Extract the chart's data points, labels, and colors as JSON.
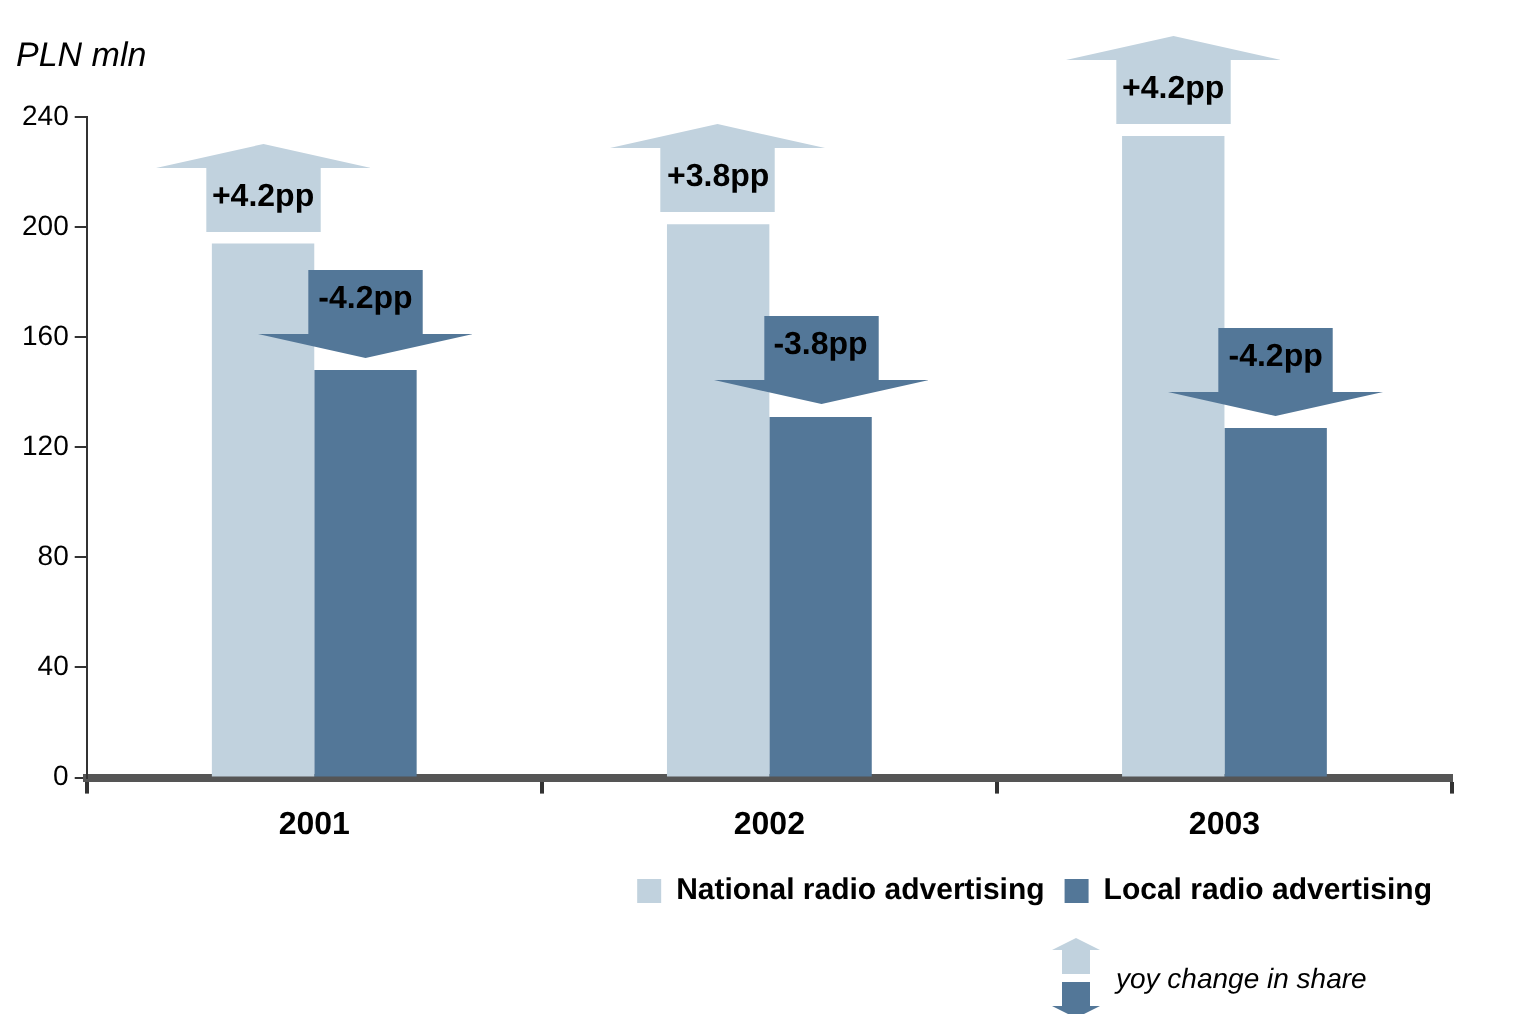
{
  "chart_data": {
    "type": "bar",
    "ylabel": "PLN mln",
    "categories": [
      "2001",
      "2002",
      "2003"
    ],
    "series": [
      {
        "name": "National radio advertising",
        "color": "#c1d2de",
        "values": [
          194,
          201,
          233
        ]
      },
      {
        "name": "Local radio advertising",
        "color": "#537798",
        "values": [
          148,
          131,
          127
        ]
      }
    ],
    "ylim": [
      0,
      240
    ],
    "yticks": [
      0,
      40,
      80,
      120,
      160,
      200,
      240
    ],
    "grid": false,
    "legend": "bottom right",
    "annotations": [
      {
        "text": "+4.2pp",
        "x": "2001",
        "y": 194
      },
      {
        "text": "-4.2pp",
        "x": "2001",
        "y": 148
      },
      {
        "text": "+3.8pp",
        "x": "2002",
        "y": 201
      },
      {
        "text": "-3.8pp",
        "x": "2002",
        "y": 131
      },
      {
        "text": "+4.2pp",
        "x": "2003",
        "y": 233
      },
      {
        "text": "-4.2pp",
        "x": "2003",
        "y": 127
      },
      "yoy change in share"
    ]
  }
}
